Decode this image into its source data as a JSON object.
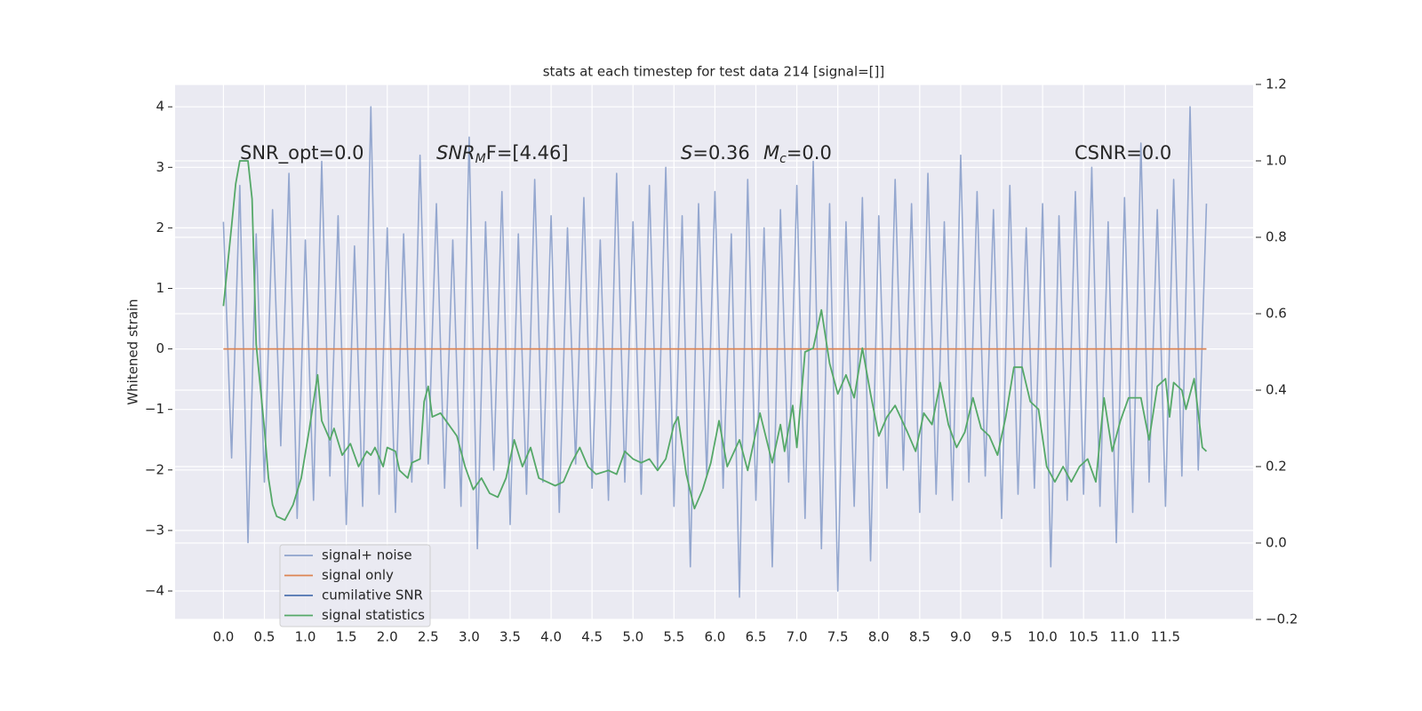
{
  "chart_data": {
    "type": "line",
    "title": "stats at each timestep for test data 214 [signal=[]]",
    "ylabel": "Whitened strain",
    "xlim": [
      -0.59,
      12.57
    ],
    "ylim": [
      -4.47,
      4.37
    ],
    "y2lim": [
      -0.2,
      1.2
    ],
    "xticks": [
      {
        "value": 0,
        "label": "0.0"
      },
      0.5,
      {
        "value": 1,
        "label": "1.0"
      },
      1.5,
      {
        "value": 2,
        "label": "2.0"
      },
      2.5,
      {
        "value": 3,
        "label": "3.0"
      },
      3.5,
      {
        "value": 4,
        "label": "4.0"
      },
      4.5,
      {
        "value": 5,
        "label": "5.0"
      },
      5.5,
      {
        "value": 6,
        "label": "6.0"
      },
      6.5,
      {
        "value": 7,
        "label": "7.0"
      },
      7.5,
      {
        "value": 8,
        "label": "8.0"
      },
      8.5,
      {
        "value": 9,
        "label": "9.0"
      },
      9.5,
      {
        "value": 10,
        "label": "10.0"
      },
      10.5,
      {
        "value": 11,
        "label": "11.0"
      },
      11.5
    ],
    "yticks": [
      {
        "value": -4,
        "label": "−4"
      },
      {
        "value": -3,
        "label": "−3"
      },
      {
        "value": -2,
        "label": "−2"
      },
      {
        "value": -1,
        "label": "−1"
      },
      0,
      1,
      2,
      3,
      4
    ],
    "y2ticks": [
      {
        "value": -0.2,
        "label": "−0.2"
      },
      {
        "value": 0,
        "label": "0.0"
      },
      0.2,
      0.4,
      0.6,
      0.8,
      {
        "value": 1,
        "label": "1.0"
      },
      1.2
    ],
    "grid": true,
    "legend": "lower left",
    "annotations": [
      {
        "label": "SNR_opt=0.0"
      },
      {
        "label": "SNR",
        "subscript": "M",
        "suffix": "F=[4.46]"
      },
      {
        "label": "S",
        "suffix": "=0.36"
      },
      {
        "label": "M",
        "subscript": "c",
        "suffix": "=0.0"
      },
      {
        "label": "CSNR=0.0"
      }
    ],
    "series": [
      {
        "name": "signal+ noise",
        "color": "#8fa3cc",
        "x": [
          0,
          0.1,
          0.2,
          0.3,
          0.4,
          0.5,
          0.6,
          0.7,
          0.8,
          0.9,
          1,
          1.1,
          1.2,
          1.3,
          1.4,
          1.5,
          1.6,
          1.7,
          1.8,
          1.9,
          2,
          2.1,
          2.2,
          2.3,
          2.4,
          2.5,
          2.6,
          2.7,
          2.8,
          2.9,
          3,
          3.1,
          3.2,
          3.3,
          3.4,
          3.5,
          3.6,
          3.7,
          3.8,
          3.9,
          4,
          4.1,
          4.2,
          4.3,
          4.4,
          4.5,
          4.6,
          4.7,
          4.8,
          4.9,
          5,
          5.1,
          5.2,
          5.3,
          5.4,
          5.5,
          5.6,
          5.7,
          5.8,
          5.9,
          6,
          6.1,
          6.2,
          6.3,
          6.4,
          6.5,
          6.6,
          6.7,
          6.8,
          6.9,
          7,
          7.1,
          7.2,
          7.3,
          7.4,
          7.5,
          7.6,
          7.7,
          7.8,
          7.9,
          8,
          8.1,
          8.2,
          8.3,
          8.4,
          8.5,
          8.6,
          8.7,
          8.8,
          8.9,
          9,
          9.1,
          9.2,
          9.3,
          9.4,
          9.5,
          9.6,
          9.7,
          9.8,
          9.9,
          10,
          10.1,
          10.2,
          10.3,
          10.4,
          10.5,
          10.6,
          10.7,
          10.8,
          10.9,
          11,
          11.1,
          11.2,
          11.3,
          11.4,
          11.5,
          11.6,
          11.7,
          11.8,
          11.9,
          12
        ],
        "values": [
          2.1,
          -1.8,
          2.7,
          -3.2,
          1.9,
          -2.2,
          2.3,
          -1.6,
          2.9,
          -2.8,
          1.8,
          -2.5,
          3.1,
          -2.1,
          2.2,
          -2.9,
          1.7,
          -2.6,
          4.0,
          -2.4,
          2.0,
          -2.7,
          1.9,
          -2.2,
          3.2,
          -1.9,
          2.4,
          -2.3,
          1.8,
          -2.6,
          3.5,
          -3.3,
          2.1,
          -2.0,
          2.6,
          -2.9,
          1.9,
          -2.4,
          2.8,
          -2.2,
          2.2,
          -2.7,
          2.0,
          -1.9,
          2.5,
          -2.3,
          1.8,
          -2.5,
          2.9,
          -2.2,
          2.1,
          -2.4,
          2.7,
          -2.0,
          3.0,
          -2.6,
          2.2,
          -3.6,
          2.4,
          -2.1,
          2.6,
          -2.3,
          1.9,
          -4.1,
          2.8,
          -2.5,
          2.0,
          -3.6,
          2.3,
          -2.2,
          2.7,
          -2.8,
          3.1,
          -3.3,
          2.4,
          -4.0,
          2.1,
          -2.6,
          2.5,
          -3.5,
          2.2,
          -2.3,
          2.8,
          -2.0,
          2.4,
          -2.7,
          2.9,
          -2.4,
          2.1,
          -2.5,
          3.2,
          -2.2,
          2.6,
          -2.1,
          2.3,
          -2.8,
          2.7,
          -2.4,
          2.0,
          -2.3,
          2.4,
          -3.6,
          2.2,
          -2.5,
          2.6,
          -2.4,
          3.0,
          -2.6,
          2.1,
          -3.2,
          2.5,
          -2.7,
          3.4,
          -2.2,
          2.3,
          -2.6,
          2.8,
          -2.1,
          4.0,
          -2.0,
          2.4
        ]
      },
      {
        "name": "signal only",
        "color": "#dd8452",
        "x": [
          0,
          12
        ],
        "values": [
          0,
          0
        ]
      },
      {
        "name": "cumilative SNR",
        "color": "#4c72b0",
        "x": [],
        "values": []
      },
      {
        "name": "signal statistics",
        "color": "#55a868",
        "axis": "y2",
        "x": [
          0,
          0.1,
          0.15,
          0.2,
          0.3,
          0.35,
          0.4,
          0.5,
          0.55,
          0.6,
          0.65,
          0.75,
          0.85,
          0.95,
          1.05,
          1.15,
          1.2,
          1.3,
          1.35,
          1.45,
          1.55,
          1.65,
          1.75,
          1.8,
          1.85,
          1.95,
          2,
          2.1,
          2.15,
          2.25,
          2.3,
          2.4,
          2.45,
          2.5,
          2.55,
          2.65,
          2.75,
          2.85,
          2.95,
          3.05,
          3.15,
          3.25,
          3.35,
          3.45,
          3.55,
          3.65,
          3.75,
          3.85,
          3.95,
          4.05,
          4.15,
          4.25,
          4.35,
          4.45,
          4.55,
          4.7,
          4.8,
          4.9,
          5,
          5.1,
          5.2,
          5.3,
          5.4,
          5.5,
          5.55,
          5.65,
          5.75,
          5.85,
          5.95,
          6.05,
          6.15,
          6.3,
          6.4,
          6.55,
          6.7,
          6.8,
          6.85,
          6.95,
          7,
          7.1,
          7.2,
          7.3,
          7.4,
          7.5,
          7.6,
          7.7,
          7.8,
          7.9,
          8,
          8.1,
          8.2,
          8.35,
          8.45,
          8.55,
          8.65,
          8.75,
          8.85,
          8.95,
          9.05,
          9.15,
          9.25,
          9.35,
          9.45,
          9.55,
          9.65,
          9.75,
          9.85,
          9.95,
          10.05,
          10.15,
          10.25,
          10.35,
          10.45,
          10.55,
          10.65,
          10.75,
          10.85,
          10.95,
          11.05,
          11.2,
          11.3,
          11.4,
          11.5,
          11.55,
          11.6,
          11.7,
          11.75,
          11.85,
          11.95,
          12
        ],
        "values": [
          0.62,
          0.83,
          0.94,
          1.0,
          1.0,
          0.9,
          0.52,
          0.3,
          0.17,
          0.1,
          0.07,
          0.06,
          0.1,
          0.17,
          0.3,
          0.44,
          0.32,
          0.27,
          0.3,
          0.23,
          0.26,
          0.2,
          0.24,
          0.23,
          0.25,
          0.2,
          0.25,
          0.24,
          0.19,
          0.17,
          0.21,
          0.22,
          0.37,
          0.41,
          0.33,
          0.34,
          0.31,
          0.28,
          0.2,
          0.14,
          0.17,
          0.13,
          0.12,
          0.17,
          0.27,
          0.2,
          0.25,
          0.17,
          0.16,
          0.15,
          0.16,
          0.21,
          0.25,
          0.2,
          0.18,
          0.19,
          0.18,
          0.24,
          0.22,
          0.21,
          0.22,
          0.19,
          0.22,
          0.31,
          0.33,
          0.18,
          0.09,
          0.14,
          0.21,
          0.32,
          0.2,
          0.27,
          0.19,
          0.34,
          0.21,
          0.31,
          0.24,
          0.36,
          0.25,
          0.5,
          0.51,
          0.61,
          0.47,
          0.39,
          0.44,
          0.38,
          0.51,
          0.39,
          0.28,
          0.33,
          0.36,
          0.29,
          0.24,
          0.34,
          0.31,
          0.42,
          0.31,
          0.25,
          0.29,
          0.38,
          0.3,
          0.28,
          0.23,
          0.33,
          0.46,
          0.46,
          0.37,
          0.35,
          0.2,
          0.16,
          0.2,
          0.16,
          0.2,
          0.22,
          0.16,
          0.38,
          0.24,
          0.32,
          0.38,
          0.38,
          0.27,
          0.41,
          0.43,
          0.33,
          0.42,
          0.4,
          0.35,
          0.43,
          0.25,
          0.24
        ]
      }
    ]
  }
}
